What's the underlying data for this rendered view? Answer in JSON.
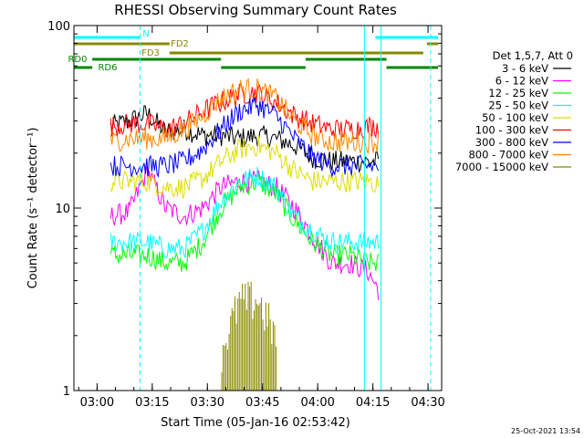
{
  "chart_data": {
    "type": "line",
    "title": "RHESSI Observing Summary Count Rates",
    "xlabel": "Start Time (05-Jan-16 02:53:42)",
    "ylabel": "Count Rate (s⁻¹ detector⁻¹)",
    "y_scale": "log",
    "ylim": [
      1,
      100
    ],
    "xlim_minutes_after_start": [
      0,
      100
    ],
    "grid": false,
    "legend_position": "right",
    "legend_header": "Det 1,5,7, Att 0",
    "x_ticks": [
      {
        "label": "03:00",
        "minute": 6.3
      },
      {
        "label": "03:15",
        "minute": 21.3
      },
      {
        "label": "03:30",
        "minute": 36.3
      },
      {
        "label": "03:45",
        "minute": 51.3
      },
      {
        "label": "04:00",
        "minute": 66.3
      },
      {
        "label": "04:15",
        "minute": 81.3
      },
      {
        "label": "04:30",
        "minute": 96.3
      }
    ],
    "y_ticks": [
      {
        "label": "1",
        "value": 1
      },
      {
        "label": "10",
        "value": 10
      },
      {
        "label": "100",
        "value": 100
      }
    ],
    "x_minutes": [
      10,
      15,
      20,
      25,
      30,
      35,
      40,
      45,
      50,
      55,
      60,
      65,
      70,
      75,
      80,
      83
    ],
    "series": [
      {
        "name": "3 - 6 keV",
        "color": "#000000",
        "values": [
          28,
          30,
          33,
          26,
          27,
          25,
          25,
          24,
          25,
          24,
          22,
          19,
          18,
          18,
          18,
          18
        ]
      },
      {
        "name": "6 - 12 keV",
        "color": "#ff00ff",
        "values": [
          9,
          9.5,
          16,
          10,
          9,
          10,
          13,
          14,
          14,
          13,
          10,
          7,
          5,
          5,
          4.5,
          3.5
        ]
      },
      {
        "name": "12 - 25 keV",
        "color": "#00ff00",
        "values": [
          5.5,
          5.5,
          5.5,
          5,
          5,
          6.5,
          10,
          13,
          14,
          12,
          8.5,
          6.5,
          5.5,
          5.5,
          5,
          5
        ]
      },
      {
        "name": "25 - 50 keV",
        "color": "#00ffff",
        "values": [
          6.5,
          6.5,
          6.5,
          6,
          6,
          7.5,
          11,
          14,
          15,
          13,
          9,
          7.5,
          6.5,
          6.5,
          6.5,
          6.5
        ]
      },
      {
        "name": "50 - 100 keV",
        "color": "#dddd00",
        "values": [
          14,
          14,
          14,
          13,
          13,
          14.5,
          18,
          21,
          22,
          20,
          16,
          14,
          14,
          14,
          14,
          13.5
        ]
      },
      {
        "name": "100 - 300 keV",
        "color": "#ff0000",
        "values": [
          28,
          29,
          29,
          27,
          29,
          34,
          38,
          42,
          43,
          38,
          32,
          29,
          27,
          27,
          28,
          28
        ]
      },
      {
        "name": "300 - 800 keV",
        "color": "#0000ff",
        "values": [
          17,
          17,
          17,
          17,
          18,
          21,
          27,
          34,
          37,
          32,
          24,
          19,
          17,
          17,
          17,
          17
        ]
      },
      {
        "name": "800 - 7000 keV",
        "color": "#ff8800",
        "values": [
          23,
          24,
          24,
          24,
          27,
          32,
          40,
          45,
          45,
          40,
          30,
          25,
          23,
          23,
          23,
          23
        ]
      },
      {
        "name": "7000 - 15000 keV",
        "color": "#888800",
        "values": [
          null,
          null,
          null,
          null,
          null,
          null,
          1.5,
          2.8,
          2.9,
          1.8,
          null,
          null,
          null,
          null,
          null,
          null
        ]
      }
    ],
    "status_bars": [
      {
        "label": "N",
        "color": "#00ffff",
        "segments": [
          [
            0,
            18
          ],
          [
            82,
            99
          ]
        ]
      },
      {
        "label": "FD2",
        "color": "#888800",
        "segments": [
          [
            0,
            26
          ],
          [
            96,
            99
          ]
        ]
      },
      {
        "label": "FD3",
        "color": "#888800",
        "segments": [
          [
            26,
            95
          ]
        ]
      },
      {
        "label": "RD0",
        "color": "#008800",
        "segments": [
          [
            5,
            40
          ],
          [
            63,
            85
          ]
        ]
      },
      {
        "label": "RD6",
        "color": "#008800",
        "segments": [
          [
            0,
            5
          ],
          [
            40,
            63
          ],
          [
            85,
            99
          ]
        ]
      }
    ],
    "vertical_markers": [
      {
        "minute": 18,
        "style": "dashed",
        "color": "#00ffff"
      },
      {
        "minute": 79,
        "style": "solid",
        "color": "#00ffff"
      },
      {
        "minute": 83.5,
        "style": "solid",
        "color": "#00ffff"
      },
      {
        "minute": 97,
        "style": "dashed",
        "color": "#00ffff"
      }
    ],
    "footer_timestamp": "25-Oct-2021 13:54"
  }
}
